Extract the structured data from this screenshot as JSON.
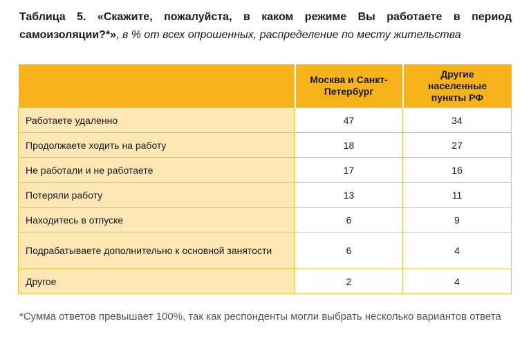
{
  "caption": {
    "bold": "Таблица 5. «Скажите, пожалуйста, в каком режиме Вы работаете в период самоизоляции?*»",
    "italic": ", в % от всех опрошенных, распределение по месту жительства"
  },
  "table": {
    "headers": [
      "",
      "Москва и Санкт-Петербург",
      "Другие населенные пункты РФ"
    ],
    "rows": [
      {
        "label": "Работаете удаленно",
        "moscow_spb": "47",
        "other": "34"
      },
      {
        "label": "Продолжаете ходить на работу",
        "moscow_spb": "18",
        "other": "27"
      },
      {
        "label": "Не работали и не работаете",
        "moscow_spb": "17",
        "other": "16"
      },
      {
        "label": "Потеряли работу",
        "moscow_spb": "13",
        "other": "11"
      },
      {
        "label": "Находитесь в отпуске",
        "moscow_spb": "6",
        "other": "9"
      },
      {
        "label": "Подрабатываете дополнительно к основной занятости",
        "moscow_spb": "6",
        "other": "4"
      },
      {
        "label": "Другое",
        "moscow_spb": "2",
        "other": "4"
      }
    ]
  },
  "footnote": "*Сумма ответов превышает 100%, так как респонденты могли выбрать несколько вариантов ответа",
  "colors": {
    "header_bg": "#f5b21b",
    "label_bg": "#fde7b5",
    "grid": "#f5c23c"
  }
}
